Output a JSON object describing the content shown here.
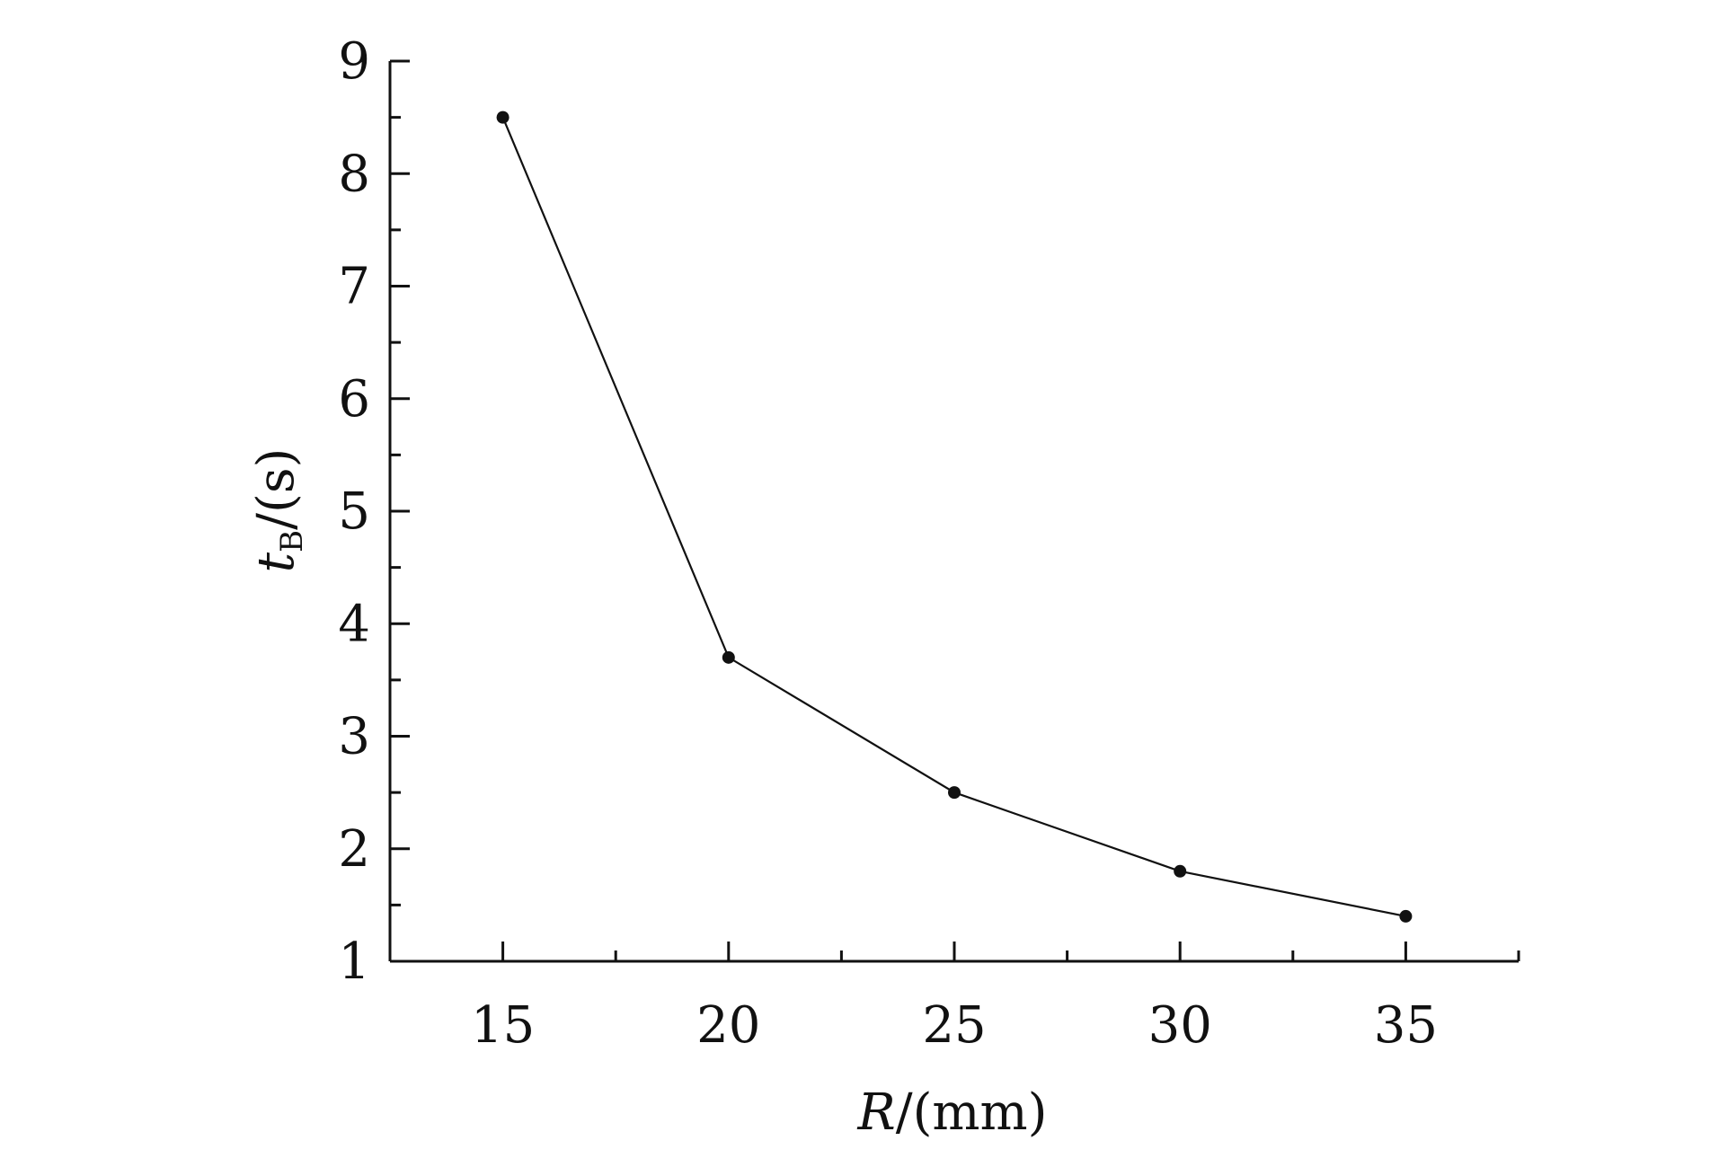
{
  "chart_data": {
    "type": "line",
    "title": "",
    "xlabel": {
      "var": "R",
      "unit": "/(mm)"
    },
    "ylabel": {
      "var": "t",
      "sub": "B",
      "unit": "/(s)"
    },
    "x": [
      15,
      20,
      25,
      30,
      35
    ],
    "series": [
      {
        "values": [
          8.5,
          3.7,
          2.5,
          1.8,
          1.4
        ]
      }
    ],
    "xlim": [
      12.5,
      37.5
    ],
    "ylim": [
      1,
      9
    ],
    "xticks": [
      15,
      20,
      25,
      30,
      35
    ],
    "xtick_labels": [
      "15",
      "20",
      "25",
      "30",
      "35"
    ],
    "yticks": [
      1,
      2,
      3,
      4,
      5,
      6,
      7,
      8,
      9
    ],
    "ytick_labels": [
      "1",
      "2",
      "3",
      "4",
      "5",
      "6",
      "7",
      "8",
      "9"
    ],
    "grid": false,
    "legend": "none",
    "line_color": "#111111",
    "marker": "filled-circle"
  }
}
